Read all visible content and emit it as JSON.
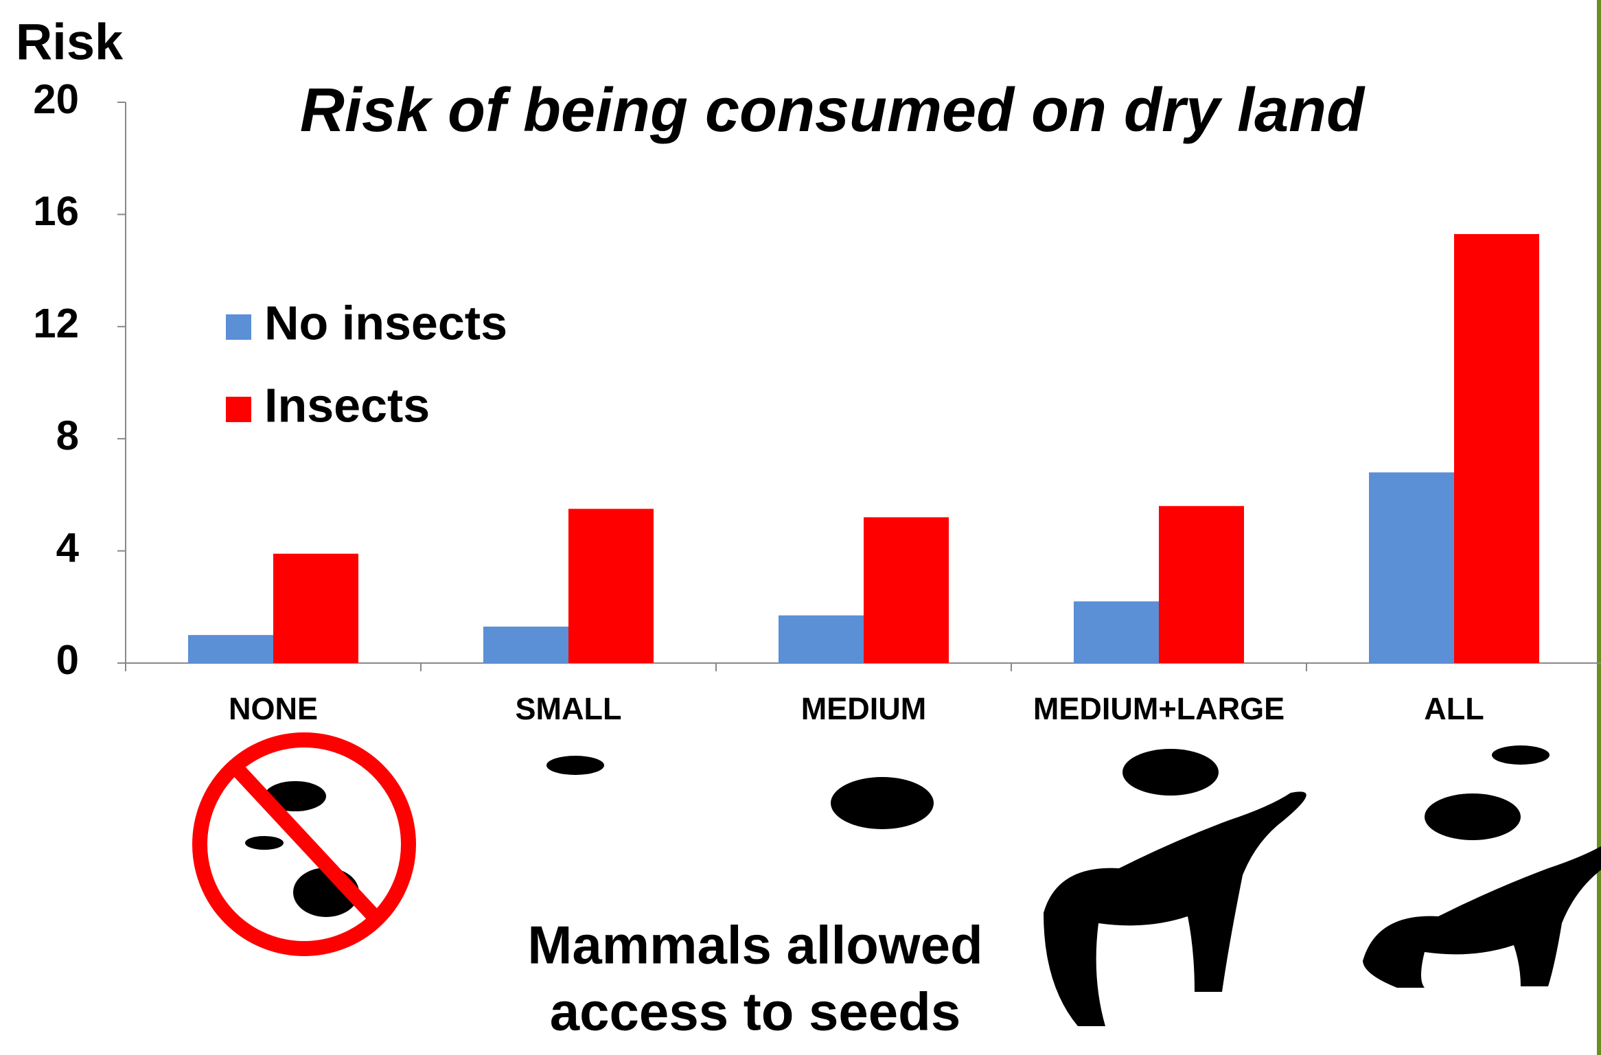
{
  "chart_data": {
    "type": "bar",
    "title": "Risk of being consumed on dry land",
    "ylabel": "Risk",
    "xlabel": [
      "Mammals allowed",
      "access to seeds"
    ],
    "categories": [
      "NONE",
      "SMALL",
      "MEDIUM",
      "MEDIUM+LARGE",
      "ALL"
    ],
    "series": [
      {
        "name": "No insects",
        "color": "#5b8fd6",
        "values": [
          1.0,
          1.3,
          1.7,
          2.2,
          6.8
        ]
      },
      {
        "name": "Insects",
        "color": "#ff0000",
        "values": [
          3.9,
          5.5,
          5.2,
          5.6,
          15.3
        ]
      }
    ],
    "ylim": [
      0,
      20
    ],
    "yticks": [
      0,
      4,
      8,
      12,
      16,
      20
    ],
    "grid": false,
    "legend": "upper left"
  }
}
